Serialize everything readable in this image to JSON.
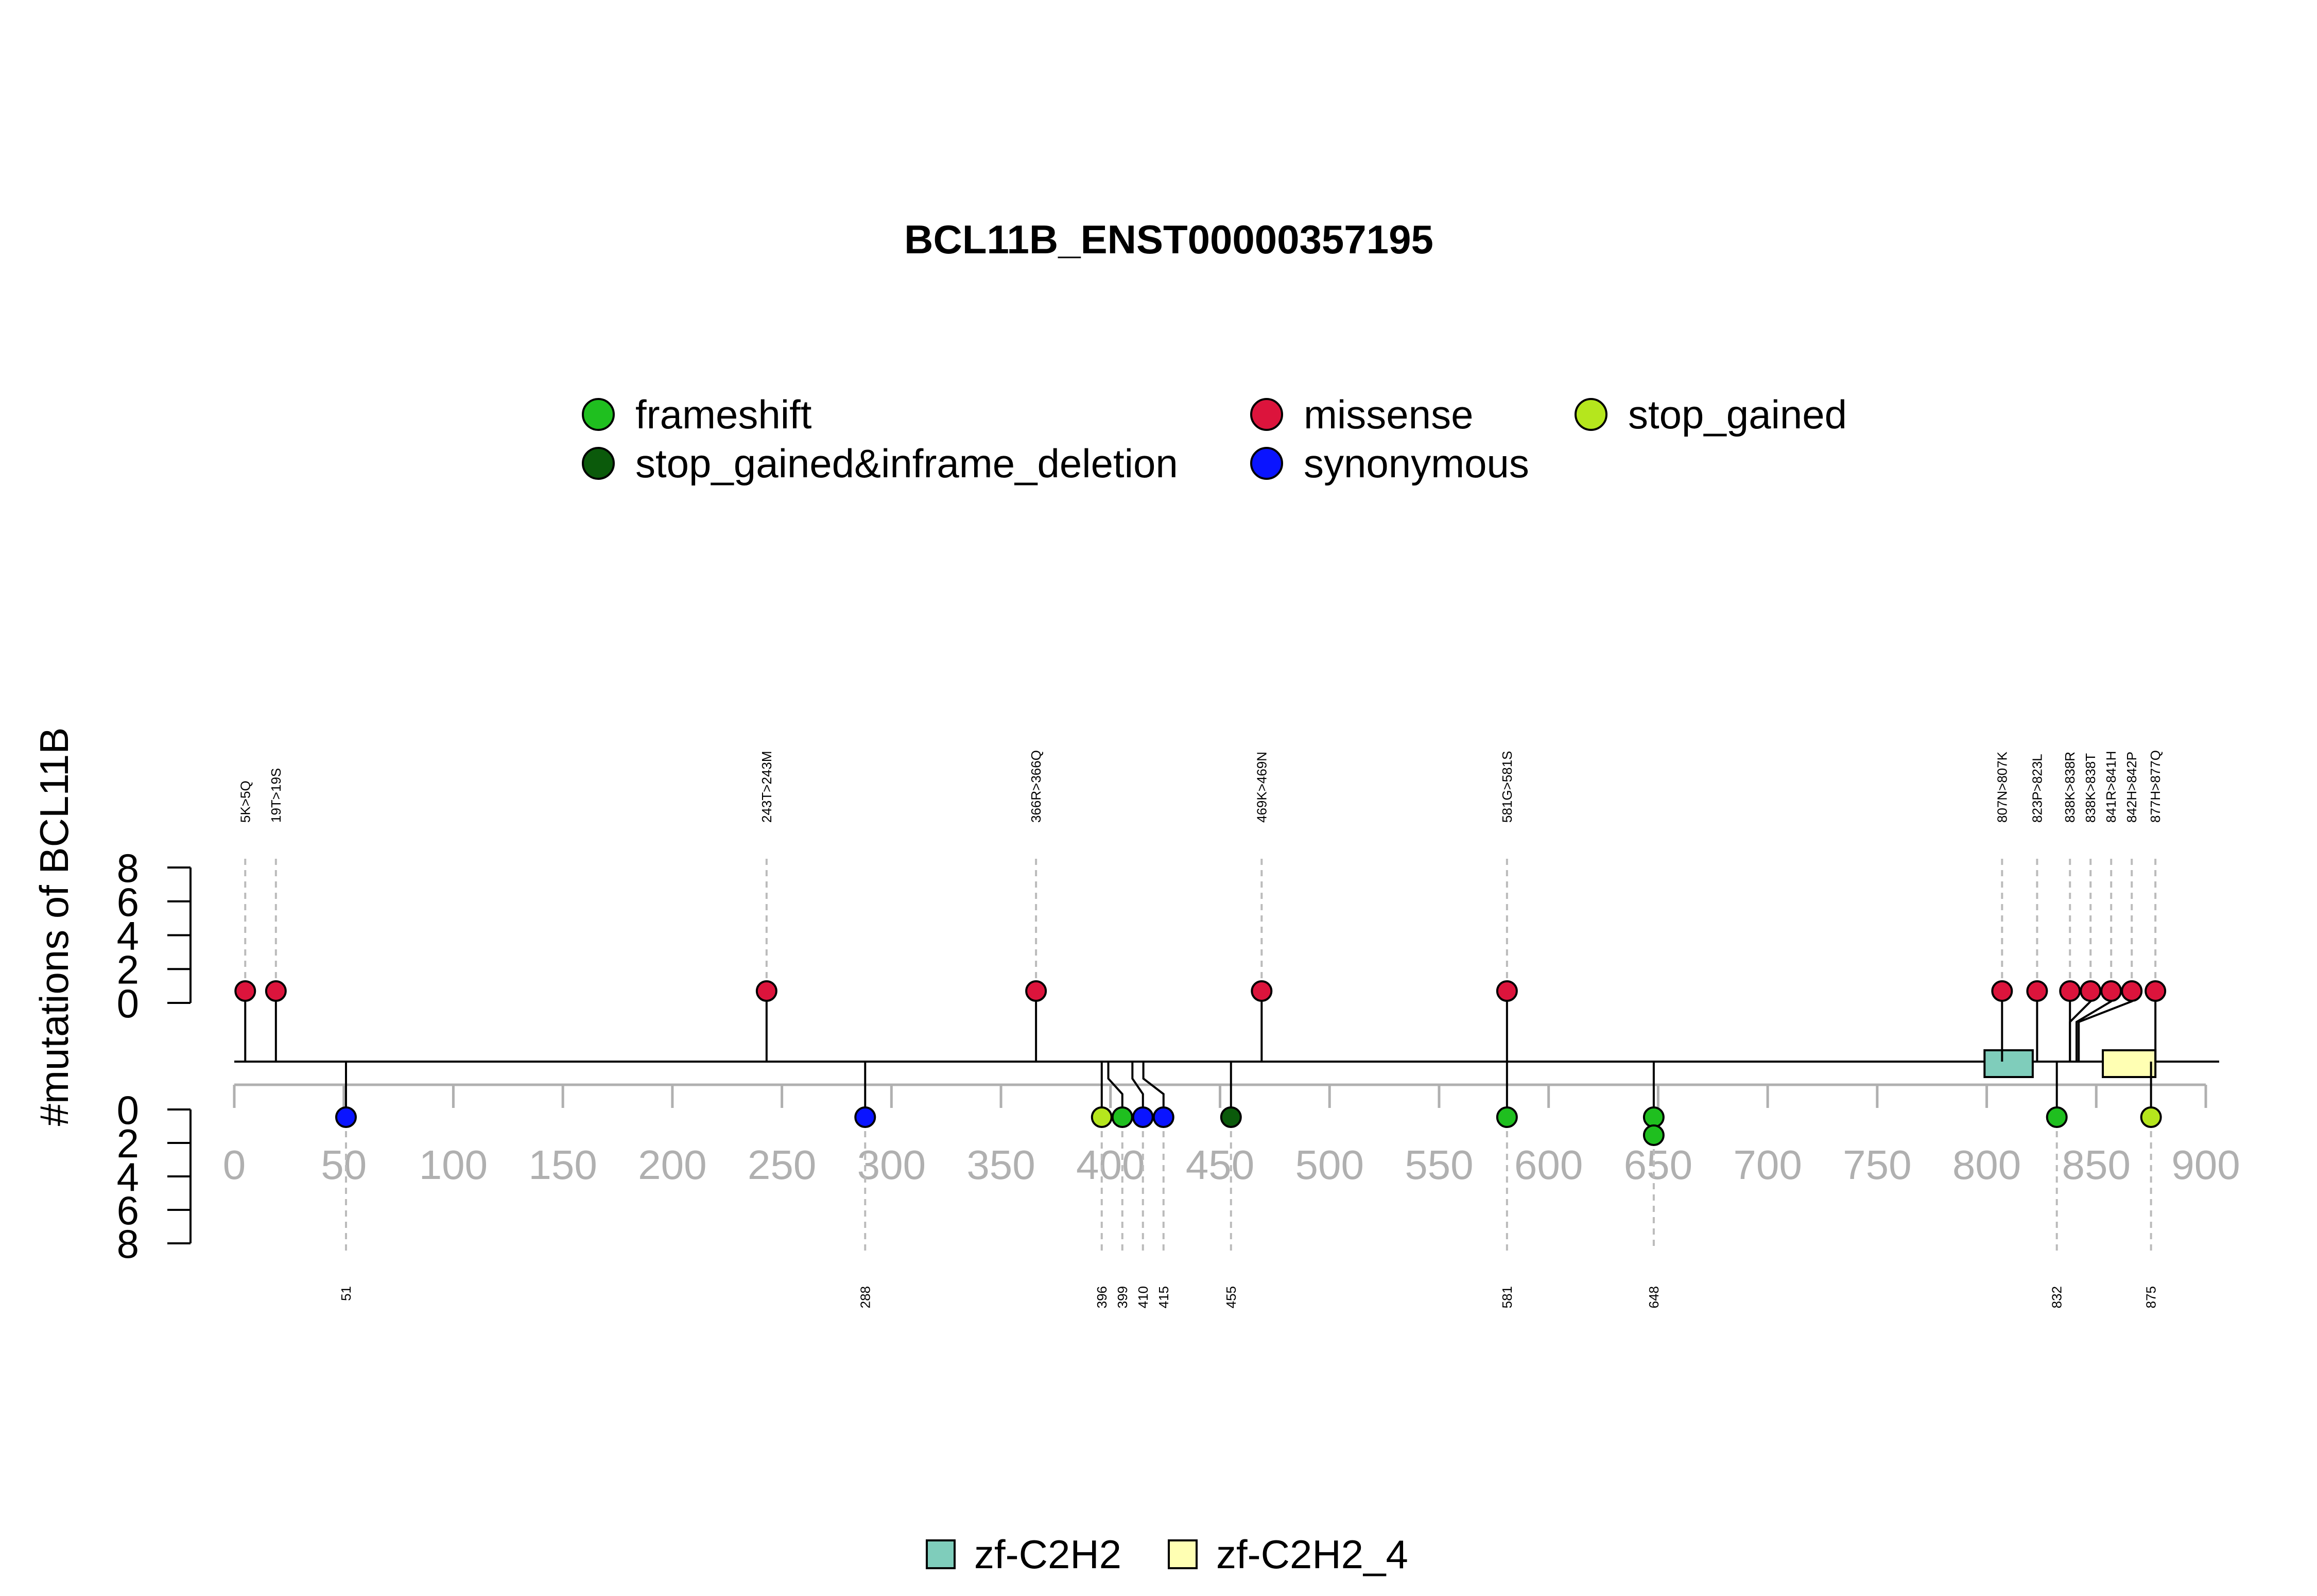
{
  "chart_data": {
    "type": "lollipop",
    "title": "BCL11B_ENST00000357195",
    "ylabel": "#mutations of BCL11B",
    "ylim": [
      0,
      8
    ],
    "yticks": [
      "8",
      "6",
      "4",
      "2",
      "0"
    ],
    "ytick_values": [
      8,
      6,
      4,
      2,
      0
    ],
    "lower_yticks": [
      "0",
      "2",
      "4",
      "6",
      "8"
    ],
    "xlim": [
      0,
      900
    ],
    "xticks": [
      "0",
      "50",
      "100",
      "150",
      "200",
      "250",
      "300",
      "350",
      "400",
      "450",
      "500",
      "550",
      "600",
      "650",
      "700",
      "750",
      "800",
      "850",
      "900"
    ],
    "xtick_values": [
      0,
      50,
      100,
      150,
      200,
      250,
      300,
      350,
      400,
      450,
      500,
      550,
      600,
      650,
      700,
      750,
      800,
      850,
      900
    ],
    "legend_top": [
      {
        "name": "frameshift",
        "color": "#1fbf1f"
      },
      {
        "name": "missense",
        "color": "#dc143c"
      },
      {
        "name": "stop_gained",
        "color": "#b5e61d"
      },
      {
        "name": "stop_gained&inframe_deletion",
        "color": "#0b5a0b"
      },
      {
        "name": "synonymous",
        "color": "#0a14ff"
      }
    ],
    "upper_mutations": [
      {
        "label": "5K>5Q",
        "position": 5,
        "count": 1,
        "type": "missense"
      },
      {
        "label": "19T>19S",
        "position": 19,
        "count": 1,
        "type": "missense"
      },
      {
        "label": "243T>243M",
        "position": 243,
        "count": 1,
        "type": "missense"
      },
      {
        "label": "366R>366Q",
        "position": 366,
        "count": 1,
        "type": "missense"
      },
      {
        "label": "469K>469N",
        "position": 469,
        "count": 1,
        "type": "missense"
      },
      {
        "label": "581G>581S",
        "position": 581,
        "count": 1,
        "type": "missense"
      },
      {
        "label": "807N>807K",
        "position": 807,
        "count": 1,
        "type": "missense"
      },
      {
        "label": "823P>823L",
        "position": 823,
        "count": 1,
        "type": "missense"
      },
      {
        "label": "838K>838R",
        "position": 838,
        "count": 1,
        "type": "missense"
      },
      {
        "label": "838K>838T",
        "position": 838,
        "count": 1,
        "type": "missense"
      },
      {
        "label": "841R>841H",
        "position": 841,
        "count": 1,
        "type": "missense"
      },
      {
        "label": "842H>842P",
        "position": 842,
        "count": 1,
        "type": "missense"
      },
      {
        "label": "877H>877Q",
        "position": 877,
        "count": 1,
        "type": "missense"
      }
    ],
    "lower_mutations": [
      {
        "label": "51",
        "position": 51,
        "count": 1,
        "type": "synonymous"
      },
      {
        "label": "288",
        "position": 288,
        "count": 1,
        "type": "synonymous"
      },
      {
        "label": "396",
        "position": 396,
        "count": 1,
        "type": "stop_gained"
      },
      {
        "label": "399",
        "position": 399,
        "count": 1,
        "type": "frameshift"
      },
      {
        "label": "410",
        "position": 410,
        "count": 1,
        "type": "synonymous"
      },
      {
        "label": "415",
        "position": 415,
        "count": 1,
        "type": "synonymous"
      },
      {
        "label": "455",
        "position": 455,
        "count": 1,
        "type": "stop_gained&inframe_deletion"
      },
      {
        "label": "581",
        "position": 581,
        "count": 1,
        "type": "frameshift"
      },
      {
        "label": "648",
        "position": 648,
        "count": 2,
        "type": "frameshift"
      },
      {
        "label": "832",
        "position": 832,
        "count": 1,
        "type": "frameshift"
      },
      {
        "label": "875",
        "position": 875,
        "count": 1,
        "type": "stop_gained"
      }
    ],
    "domains": [
      {
        "name": "zf-C2H2",
        "start": 799,
        "end": 821,
        "color": "#7fcdbb"
      },
      {
        "name": "zf-C2H2_4",
        "start": 853,
        "end": 877,
        "color": "#ffffb3"
      }
    ],
    "legend_bottom": [
      {
        "name": "zf-C2H2",
        "color": "#7fcdbb"
      },
      {
        "name": "zf-C2H2_4",
        "color": "#ffffb3"
      }
    ]
  }
}
